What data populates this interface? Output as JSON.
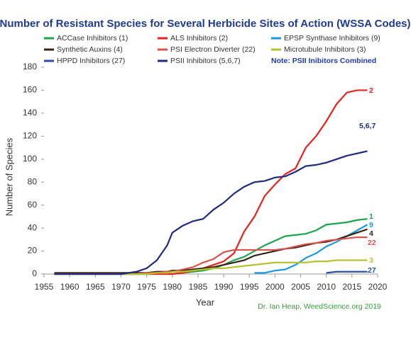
{
  "chart_data": {
    "type": "line",
    "title": "Number of Resistant Species for Several Herbicide Sites of Action (WSSA Codes)",
    "note": "Note: PSII Inibitors Combined",
    "credit": "Dr. Ian Heap, WeedScience.org 2019",
    "xlabel": "Year",
    "ylabel": "Number of Species",
    "xlim": [
      1955,
      2020
    ],
    "ylim": [
      0,
      180
    ],
    "xticks": [
      1955,
      1960,
      1965,
      1970,
      1975,
      1980,
      1985,
      1990,
      1995,
      2000,
      2005,
      2010,
      2015,
      2020
    ],
    "yticks": [
      0,
      20,
      40,
      60,
      80,
      100,
      120,
      140,
      160,
      180
    ],
    "x": [
      1957,
      1970,
      1973,
      1975,
      1977,
      1979,
      1980,
      1982,
      1984,
      1986,
      1988,
      1990,
      1992,
      1994,
      1996,
      1998,
      2000,
      2002,
      2004,
      2006,
      2008,
      2010,
      2012,
      2014,
      2016,
      2018
    ],
    "series": [
      {
        "name": "ACCase Inhibitors (1)",
        "end_label": "1",
        "color": "#1aa64a",
        "values": [
          0,
          0,
          0,
          0,
          0,
          0,
          0,
          1,
          2,
          3,
          5,
          8,
          12,
          15,
          20,
          25,
          29,
          33,
          34,
          35,
          38,
          43,
          44,
          45,
          47,
          48
        ]
      },
      {
        "name": "ALS Inhibitors (2)",
        "end_label": "2",
        "color": "#e8211d",
        "values": [
          0,
          0,
          0,
          0,
          0,
          0,
          0,
          1,
          3,
          5,
          8,
          11,
          18,
          37,
          50,
          68,
          78,
          87,
          92,
          110,
          120,
          133,
          148,
          158,
          160,
          160
        ]
      },
      {
        "name": "EPSP Synthase Inhibitors (9)",
        "end_label": "9",
        "color": "#1a9be0",
        "values": [
          null,
          null,
          null,
          null,
          null,
          null,
          null,
          null,
          null,
          null,
          null,
          null,
          null,
          null,
          1,
          1,
          3,
          4,
          8,
          14,
          18,
          24,
          28,
          33,
          38,
          43
        ]
      },
      {
        "name": "Synthetic Auxins (4)",
        "end_label": "4",
        "color": "#3b2216",
        "values": [
          1,
          1,
          1,
          1,
          2,
          2,
          3,
          3,
          4,
          5,
          6,
          8,
          10,
          12,
          16,
          18,
          20,
          22,
          23,
          25,
          27,
          28,
          30,
          33,
          36,
          39
        ]
      },
      {
        "name": "PSI Electron Diverter (22)",
        "end_label": "22",
        "color": "#d9534a",
        "values": [
          0,
          0,
          0,
          1,
          1,
          2,
          2,
          4,
          6,
          10,
          13,
          19,
          21,
          21,
          21,
          21,
          21,
          22,
          24,
          26,
          27,
          29,
          30,
          31,
          32,
          32
        ]
      },
      {
        "name": "Microtubule Inhibitors (3)",
        "end_label": "3",
        "color": "#b5c234",
        "values": [
          0,
          0,
          0,
          0,
          1,
          1,
          2,
          2,
          3,
          4,
          5,
          5,
          6,
          7,
          8,
          9,
          10,
          10,
          10,
          10,
          11,
          11,
          12,
          12,
          12,
          12
        ]
      },
      {
        "name": "HPPD Inhibitors (27)",
        "end_label": "27",
        "color": "#2b4fa8",
        "values": [
          null,
          null,
          null,
          null,
          null,
          null,
          null,
          null,
          null,
          null,
          null,
          null,
          null,
          null,
          null,
          null,
          null,
          null,
          null,
          null,
          null,
          1,
          2,
          2,
          2,
          2
        ]
      },
      {
        "name": "PSII Inhibitors (5,6,7)",
        "end_label": "5,6,7",
        "color": "#1f2a80",
        "values": [
          0,
          0,
          2,
          5,
          12,
          25,
          36,
          42,
          46,
          48,
          56,
          62,
          70,
          76,
          80,
          81,
          84,
          85,
          89,
          94,
          95,
          97,
          100,
          103,
          105,
          107
        ]
      }
    ]
  }
}
